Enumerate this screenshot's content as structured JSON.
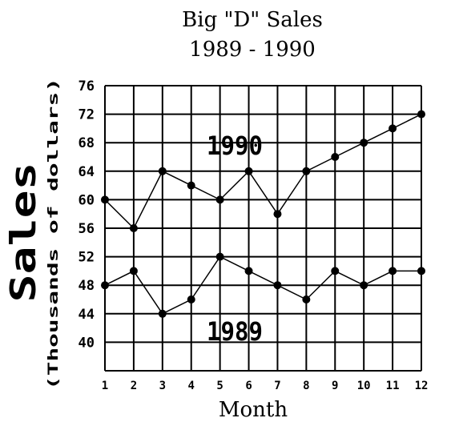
{
  "chart_data": {
    "type": "line",
    "title": "Big \"D\" Sales",
    "subtitle": "1989 - 1990",
    "xlabel": "Month",
    "ylabel": "Sales",
    "ylabel_sub": "(Thousands of dollars)",
    "x": [
      1,
      2,
      3,
      4,
      5,
      6,
      7,
      8,
      9,
      10,
      11,
      12
    ],
    "xticks": [
      "1",
      "2",
      "3",
      "4",
      "5",
      "6",
      "7",
      "8",
      "9",
      "10",
      "11",
      "12"
    ],
    "yticks": [
      "76",
      "72",
      "68",
      "64",
      "60",
      "56",
      "52",
      "48",
      "44",
      "40"
    ],
    "ylim": [
      36,
      76
    ],
    "grid": true,
    "series": [
      {
        "name": "1990",
        "values": [
          60,
          56,
          64,
          62,
          60,
          64,
          58,
          64,
          66,
          68,
          70,
          72
        ]
      },
      {
        "name": "1989",
        "values": [
          48,
          50,
          44,
          46,
          52,
          50,
          48,
          46,
          50,
          48,
          50,
          50
        ]
      }
    ],
    "colors": {
      "line": "#000000",
      "grid": "#000000",
      "background": "#ffffff"
    }
  }
}
